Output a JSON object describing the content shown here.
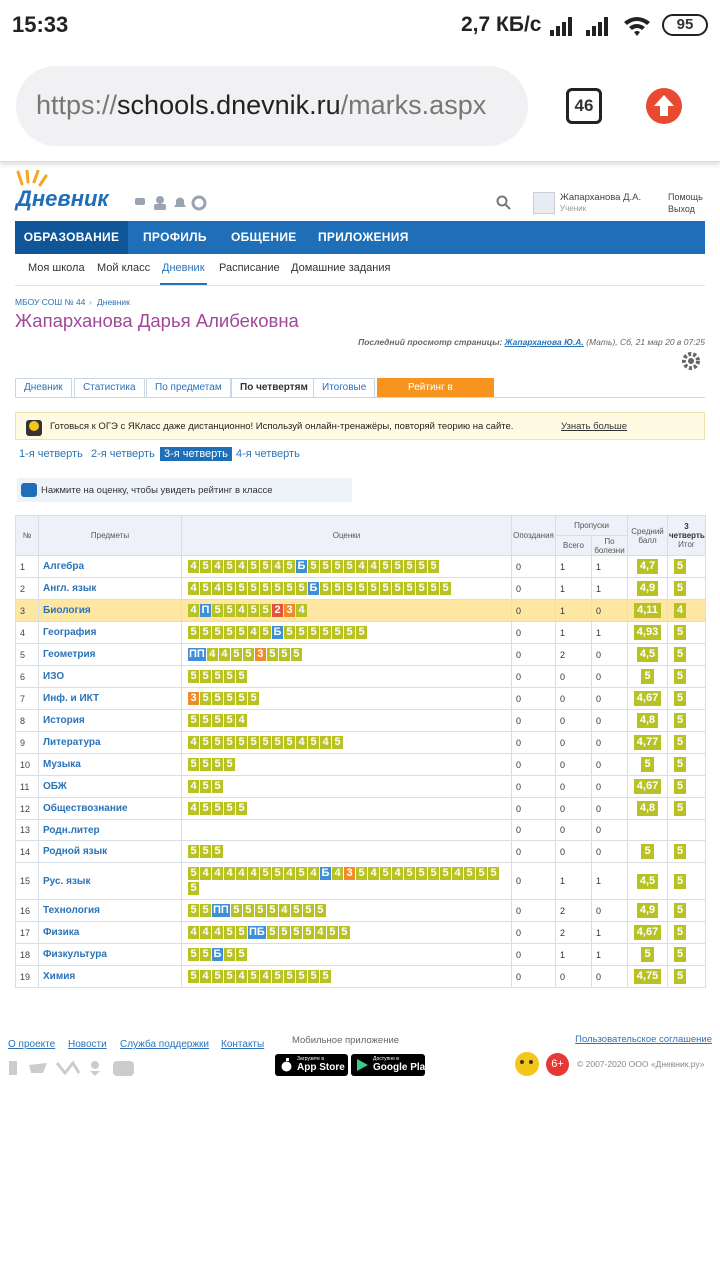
{
  "status_bar": {
    "time": "15:33",
    "speed": "2,7 КБ/с",
    "battery": "95"
  },
  "browser": {
    "url_scheme": "https://",
    "url_host": "schools.dnevnik.ru",
    "url_path": "/marks.aspx",
    "tabs": "46"
  },
  "header": {
    "logo": "Дневник",
    "user_name": "Жапарханова Д.А.",
    "user_role": "Ученик",
    "help": "Помощь",
    "logout": "Выход"
  },
  "nav": [
    "ОБРАЗОВАНИЕ",
    "ПРОФИЛЬ",
    "ОБЩЕНИЕ",
    "ПРИЛОЖЕНИЯ"
  ],
  "subnav": [
    "Моя школа",
    "Мой класс",
    "Дневник",
    "Расписание",
    "Домашние задания"
  ],
  "breadcrumb": [
    "МБОУ СОШ № 44",
    "Дневник"
  ],
  "student": "Жапарханова Дарья Алибековна",
  "last_view": {
    "label": "Последний просмотр страницы:",
    "who": "Жапарханова Ю.А.",
    "rest": "(Мать), Сб, 21 мар 20 в 07:25"
  },
  "tabs": [
    "Дневник",
    "Статистика",
    "По предметам",
    "По четвертям",
    "Итоговые",
    "Рейтинг в классе"
  ],
  "banner": {
    "text": "Готовься к ОГЭ с ЯКласс даже дистанционно! Используй онлайн-тренажёры, повторяй теорию на сайте.",
    "link": "Узнать больше"
  },
  "quarters": [
    "1-я четверть",
    "2-я четверть",
    "3-я четверть",
    "4-я четверть"
  ],
  "hint": "Нажмите на оценку, чтобы увидеть рейтинг в классе",
  "table": {
    "headers": {
      "num": "№",
      "subject": "Предметы",
      "marks": "Оценки",
      "late": "Опоздания",
      "absences": "Пропуски",
      "total": "Всего",
      "sick": "По болезни",
      "average": "Средний балл",
      "final_quarter": "3 четверть",
      "final": "Итог"
    },
    "rows": [
      {
        "n": 1,
        "subject": "Алгебра",
        "marks": [
          "4",
          "5",
          "4",
          "5",
          "4",
          "5",
          "5",
          "4",
          "5",
          "Б",
          "5",
          "5",
          "5",
          "5",
          "4",
          "4",
          "5",
          "5",
          "5",
          "5",
          "5"
        ],
        "late": 0,
        "total": 1,
        "sick": 1,
        "average": "4,7",
        "final": 5
      },
      {
        "n": 2,
        "subject": "Англ. язык",
        "marks": [
          "4",
          "5",
          "4",
          "5",
          "5",
          "5",
          "5",
          "5",
          "5",
          "5",
          "Б",
          "5",
          "5",
          "5",
          "5",
          "5",
          "5",
          "5",
          "5",
          "5",
          "5",
          "5"
        ],
        "late": 0,
        "total": 1,
        "sick": 1,
        "average": "4,9",
        "final": 5
      },
      {
        "n": 3,
        "subject": "Биология",
        "marks": [
          "4",
          "П",
          "5",
          "5",
          "4",
          "5",
          "5",
          "2",
          "3",
          "4"
        ],
        "late": 0,
        "total": 1,
        "sick": 0,
        "average": "4,11",
        "final": 4
      },
      {
        "n": 4,
        "subject": "География",
        "marks": [
          "5",
          "5",
          "5",
          "5",
          "5",
          "4",
          "5",
          "Б",
          "5",
          "5",
          "5",
          "5",
          "5",
          "5",
          "5"
        ],
        "late": 0,
        "total": 1,
        "sick": 1,
        "average": "4,93",
        "final": 5
      },
      {
        "n": 5,
        "subject": "Геометрия",
        "marks": [
          "ПП",
          "4",
          "4",
          "5",
          "5",
          "3",
          "5",
          "5",
          "5"
        ],
        "late": 0,
        "total": 2,
        "sick": 0,
        "average": "4,5",
        "final": 5
      },
      {
        "n": 6,
        "subject": "ИЗО",
        "marks": [
          "5",
          "5",
          "5",
          "5",
          "5"
        ],
        "late": 0,
        "total": 0,
        "sick": 0,
        "average": "5",
        "final": 5
      },
      {
        "n": 7,
        "subject": "Инф. и ИКТ",
        "marks": [
          "3",
          "5",
          "5",
          "5",
          "5",
          "5"
        ],
        "late": 0,
        "total": 0,
        "sick": 0,
        "average": "4,67",
        "final": 5
      },
      {
        "n": 8,
        "subject": "История",
        "marks": [
          "5",
          "5",
          "5",
          "5",
          "4"
        ],
        "late": 0,
        "total": 0,
        "sick": 0,
        "average": "4,8",
        "final": 5
      },
      {
        "n": 9,
        "subject": "Литература",
        "marks": [
          "4",
          "5",
          "5",
          "5",
          "5",
          "5",
          "5",
          "5",
          "5",
          "4",
          "5",
          "4",
          "5"
        ],
        "late": 0,
        "total": 0,
        "sick": 0,
        "average": "4,77",
        "final": 5
      },
      {
        "n": 10,
        "subject": "Музыка",
        "marks": [
          "5",
          "5",
          "5",
          "5"
        ],
        "late": 0,
        "total": 0,
        "sick": 0,
        "average": "5",
        "final": 5
      },
      {
        "n": 11,
        "subject": "ОБЖ",
        "marks": [
          "4",
          "5",
          "5"
        ],
        "late": 0,
        "total": 0,
        "sick": 0,
        "average": "4,67",
        "final": 5
      },
      {
        "n": 12,
        "subject": "Обществознание",
        "marks": [
          "4",
          "5",
          "5",
          "5",
          "5"
        ],
        "late": 0,
        "total": 0,
        "sick": 0,
        "average": "4,8",
        "final": 5
      },
      {
        "n": 13,
        "subject": "Родн.литер",
        "marks": [],
        "late": 0,
        "total": 0,
        "sick": 0
      },
      {
        "n": 14,
        "subject": "Родной язык",
        "marks": [
          "5",
          "5",
          "5"
        ],
        "late": 0,
        "total": 0,
        "sick": 0,
        "average": "5",
        "final": 5
      },
      {
        "n": 15,
        "subject": "Рус. язык",
        "marks": [
          "5",
          "4",
          "4",
          "4",
          "4",
          "4",
          "5",
          "5",
          "4",
          "5",
          "4",
          "Б",
          "4",
          "3",
          "5",
          "4",
          "5",
          "4",
          "5",
          "5",
          "5",
          "5",
          "4",
          "5",
          "5",
          "5",
          "5"
        ],
        "late": 0,
        "total": 1,
        "sick": 1,
        "average": "4,5",
        "final": 5
      },
      {
        "n": 16,
        "subject": "Технология",
        "marks": [
          "5",
          "5",
          "ПП",
          "5",
          "5",
          "5",
          "5",
          "4",
          "5",
          "5",
          "5"
        ],
        "late": 0,
        "total": 2,
        "sick": 0,
        "average": "4,9",
        "final": 5
      },
      {
        "n": 17,
        "subject": "Физика",
        "marks": [
          "4",
          "4",
          "4",
          "5",
          "5",
          "ПБ",
          "5",
          "5",
          "5",
          "5",
          "4",
          "5",
          "5"
        ],
        "late": 0,
        "total": 2,
        "sick": 1,
        "average": "4,67",
        "final": 5
      },
      {
        "n": 18,
        "subject": "Физкультура",
        "marks": [
          "5",
          "5",
          "Б",
          "5",
          "5"
        ],
        "late": 0,
        "total": 1,
        "sick": 1,
        "average": "5",
        "final": 5
      },
      {
        "n": 19,
        "subject": "Химия",
        "marks": [
          "5",
          "4",
          "5",
          "5",
          "4",
          "5",
          "4",
          "5",
          "5",
          "5",
          "5",
          "5"
        ],
        "late": 0,
        "total": 0,
        "sick": 0,
        "average": "4,75",
        "final": 5
      }
    ]
  },
  "footer": {
    "links": [
      "О проекте",
      "Новости",
      "Служба поддержки",
      "Контакты"
    ],
    "mobile": "Мобильное приложение",
    "app_store_small": "Загрузите в",
    "app_store": "App Store",
    "google_small": "Доступно в",
    "google_play": "Google Play",
    "agreement": "Пользовательское соглашение",
    "age": "6+",
    "copyright": "© 2007-2020 ООО «Дневник.ру»"
  }
}
